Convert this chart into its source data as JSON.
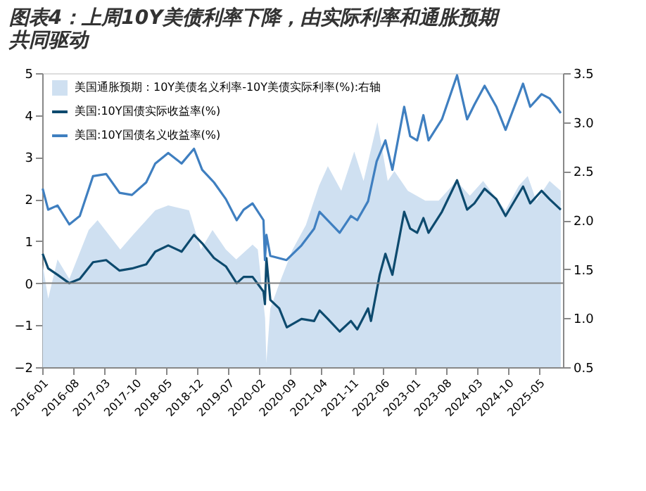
{
  "chart_data": {
    "type": "line",
    "title": "图表4：上周10Y美债利率下降，由实际利率和通胀预期共同驱动",
    "xlim": [
      "2016-01-01",
      "2025-10-15"
    ],
    "xticks": [
      "2016-01",
      "2016-08",
      "2017-03",
      "2017-10",
      "2018-05",
      "2018-12",
      "2019-07",
      "2020-02",
      "2020-09",
      "2021-04",
      "2021-11",
      "2022-06",
      "2023-01",
      "2023-08",
      "2024-03",
      "2024-10",
      "2025-05"
    ],
    "ylim": [
      -2,
      5
    ],
    "yticks": [
      -2,
      -1,
      0,
      1,
      2,
      3,
      4,
      5
    ],
    "y2lim": [
      0.5,
      3.5
    ],
    "y2ticks": [
      0.5,
      {
        "value": 1,
        "label": "1.0"
      },
      1.5,
      {
        "value": 2,
        "label": "2.0"
      },
      2.5,
      {
        "value": 3,
        "label": "3.0"
      },
      3.5
    ],
    "grid": false,
    "legend": "top left",
    "ref_lines": [
      {
        "axis": "y",
        "value": 0,
        "color": "#808080"
      }
    ],
    "series": [
      {
        "name": "美国通胀预期：10Y美债名义利率-10Y美债实际利率(%):右轴",
        "type": "area",
        "axis": "y2",
        "color": "#cfe0f1",
        "x": [
          "2016-01-04",
          "2016-02-11",
          "2016-04-15",
          "2016-07-05",
          "2016-11-15",
          "2017-01-15",
          "2017-06-20",
          "2017-09-15",
          "2018-02-15",
          "2018-05-15",
          "2018-10-05",
          "2018-12-25",
          "2019-03-15",
          "2019-06-15",
          "2019-08-25",
          "2019-12-15",
          "2020-01-20",
          "2020-03-10",
          "2020-03-19",
          "2020-04-15",
          "2020-06-15",
          "2020-09-15",
          "2020-12-15",
          "2021-03-15",
          "2021-05-15",
          "2021-08-15",
          "2021-11-12",
          "2022-01-15",
          "2022-04-20",
          "2022-06-30",
          "2022-08-15",
          "2022-11-15",
          "2023-03-15",
          "2023-06-15",
          "2023-10-15",
          "2024-01-15",
          "2024-04-15",
          "2024-09-15",
          "2024-12-15",
          "2025-02-15",
          "2025-04-15",
          "2025-07-15",
          "2025-09-30"
        ],
        "values": [
          1.55,
          1.2,
          1.6,
          1.4,
          1.9,
          2.0,
          1.7,
          1.85,
          2.1,
          2.15,
          2.1,
          1.7,
          1.9,
          1.7,
          1.6,
          1.75,
          1.7,
          1.0,
          0.55,
          1.1,
          1.35,
          1.7,
          1.95,
          2.35,
          2.55,
          2.3,
          2.7,
          2.4,
          3.0,
          2.4,
          2.5,
          2.3,
          2.2,
          2.2,
          2.4,
          2.25,
          2.4,
          2.1,
          2.35,
          2.45,
          2.2,
          2.4,
          2.3
        ]
      },
      {
        "name": "美国:10Y国债实际收益率(%)",
        "color": "#0d4a6e",
        "x": [
          "2016-01-04",
          "2016-02-11",
          "2016-04-15",
          "2016-07-05",
          "2016-09-15",
          "2016-12-15",
          "2017-03-15",
          "2017-06-15",
          "2017-09-08",
          "2017-12-15",
          "2018-02-15",
          "2018-05-15",
          "2018-08-15",
          "2018-11-08",
          "2019-01-03",
          "2019-03-25",
          "2019-06-15",
          "2019-08-28",
          "2019-10-15",
          "2019-12-15",
          "2020-02-28",
          "2020-03-09",
          "2020-03-19",
          "2020-04-15",
          "2020-06-15",
          "2020-08-06",
          "2020-11-15",
          "2021-02-10",
          "2021-03-19",
          "2021-05-15",
          "2021-08-04",
          "2021-10-20",
          "2021-12-03",
          "2022-02-15",
          "2022-03-07",
          "2022-05-06",
          "2022-06-14",
          "2022-08-01",
          "2022-10-21",
          "2022-12-01",
          "2023-01-18",
          "2023-03-02",
          "2023-04-06",
          "2023-07-07",
          "2023-10-19",
          "2023-12-27",
          "2024-02-15",
          "2024-04-25",
          "2024-07-15",
          "2024-09-16",
          "2025-01-14",
          "2025-03-04",
          "2025-05-21",
          "2025-07-15",
          "2025-09-30"
        ],
        "values": [
          0.7,
          0.35,
          0.2,
          0.0,
          0.1,
          0.5,
          0.55,
          0.3,
          0.35,
          0.45,
          0.75,
          0.9,
          0.75,
          1.15,
          0.95,
          0.6,
          0.4,
          0.0,
          0.15,
          0.15,
          -0.2,
          -0.5,
          0.6,
          -0.4,
          -0.6,
          -1.05,
          -0.85,
          -0.9,
          -0.65,
          -0.85,
          -1.15,
          -0.9,
          -1.1,
          -0.6,
          -0.9,
          0.2,
          0.7,
          0.2,
          1.7,
          1.3,
          1.2,
          1.55,
          1.2,
          1.7,
          2.45,
          1.75,
          1.9,
          2.25,
          2.0,
          1.6,
          2.3,
          1.9,
          2.2,
          2.0,
          1.75
        ]
      },
      {
        "name": "美国:10Y国债名义收益率(%)",
        "color": "#3f7fc0",
        "x": [
          "2016-01-04",
          "2016-02-11",
          "2016-04-15",
          "2016-07-05",
          "2016-09-15",
          "2016-12-15",
          "2017-03-15",
          "2017-06-15",
          "2017-09-08",
          "2017-12-15",
          "2018-02-15",
          "2018-05-15",
          "2018-08-15",
          "2018-11-08",
          "2019-01-03",
          "2019-03-25",
          "2019-06-15",
          "2019-08-28",
          "2019-10-15",
          "2019-12-15",
          "2020-02-28",
          "2020-03-09",
          "2020-03-19",
          "2020-04-15",
          "2020-08-04",
          "2020-11-15",
          "2021-02-10",
          "2021-03-19",
          "2021-08-04",
          "2021-10-20",
          "2021-12-03",
          "2022-02-15",
          "2022-04-15",
          "2022-06-14",
          "2022-08-01",
          "2022-10-21",
          "2022-12-01",
          "2023-01-18",
          "2023-03-02",
          "2023-04-06",
          "2023-07-07",
          "2023-10-19",
          "2023-12-27",
          "2024-02-15",
          "2024-04-25",
          "2024-07-15",
          "2024-09-16",
          "2025-01-14",
          "2025-03-04",
          "2025-05-21",
          "2025-07-15",
          "2025-09-30"
        ],
        "values": [
          2.25,
          1.75,
          1.85,
          1.4,
          1.6,
          2.55,
          2.6,
          2.15,
          2.1,
          2.4,
          2.85,
          3.1,
          2.85,
          3.2,
          2.7,
          2.4,
          2.0,
          1.5,
          1.75,
          1.9,
          1.5,
          0.55,
          1.15,
          0.65,
          0.55,
          0.9,
          1.3,
          1.7,
          1.2,
          1.6,
          1.5,
          1.95,
          2.9,
          3.4,
          2.7,
          4.2,
          3.5,
          3.4,
          4.0,
          3.4,
          3.9,
          4.95,
          3.9,
          4.25,
          4.7,
          4.2,
          3.65,
          4.75,
          4.2,
          4.5,
          4.4,
          4.05
        ]
      }
    ]
  }
}
